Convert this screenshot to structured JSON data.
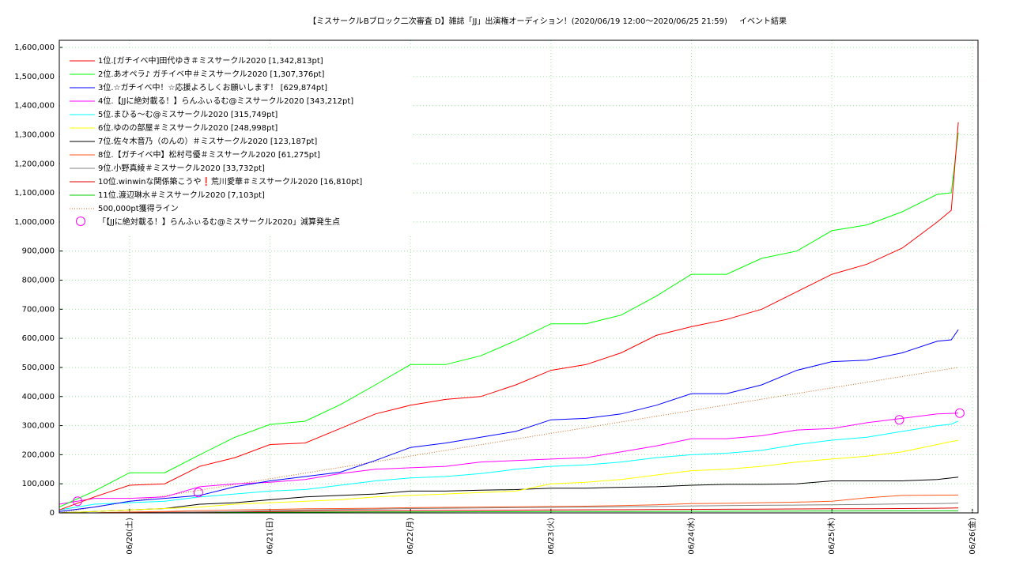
{
  "chart_data": {
    "type": "line",
    "title": "【ミスサークルBブロック二次審査 D】雑誌「JJ」出演権オーディション！(2020/06/19 12:00～2020/06/25 21:59)",
    "subtitle": "イベント結果",
    "x": [
      19.5,
      19.75,
      20,
      20.25,
      20.5,
      20.75,
      21,
      21.25,
      21.5,
      21.75,
      22,
      22.25,
      22.5,
      22.75,
      23,
      23.25,
      23.5,
      23.75,
      24,
      24.25,
      24.5,
      24.75,
      25,
      25.25,
      25.5,
      25.75,
      25.85,
      25.9
    ],
    "xlim": [
      19.5,
      26.04
    ],
    "xticks": [
      {
        "value": 20,
        "label": "06/20(土)"
      },
      {
        "value": 21,
        "label": "06/21(日)"
      },
      {
        "value": 22,
        "label": "06/22(月)"
      },
      {
        "value": 23,
        "label": "06/23(火)"
      },
      {
        "value": 24,
        "label": "06/24(水)"
      },
      {
        "value": 25,
        "label": "06/25(木)"
      },
      {
        "value": 26,
        "label": "06/26(金)"
      }
    ],
    "ylim": [
      0,
      1600000
    ],
    "yticks": [
      0,
      {
        "value": 100000,
        "label": "100,000"
      },
      {
        "value": 200000,
        "label": "200,000"
      },
      {
        "value": 300000,
        "label": "300,000"
      },
      {
        "value": 400000,
        "label": "400,000"
      },
      {
        "value": 500000,
        "label": "500,000"
      },
      {
        "value": 600000,
        "label": "600,000"
      },
      {
        "value": 700000,
        "label": "700,000"
      },
      {
        "value": 800000,
        "label": "800,000"
      },
      {
        "value": 900000,
        "label": "900,000"
      },
      {
        "value": 1000000,
        "label": "1,000,000"
      },
      {
        "value": 1100000,
        "label": "1,100,000"
      },
      {
        "value": 1200000,
        "label": "1,200,000"
      },
      {
        "value": 1300000,
        "label": "1,300,000"
      },
      {
        "value": 1400000,
        "label": "1,400,000"
      },
      {
        "value": 1500000,
        "label": "1,500,000"
      },
      {
        "value": 1600000,
        "label": "1,600,000"
      }
    ],
    "grid": true,
    "series": [
      {
        "name": "1位.[ガチイベ中]田代ゆき＃ミスサークル2020 [1,342,813pt]",
        "color": "#ff0000",
        "values": [
          10000,
          55000,
          95000,
          100000,
          160000,
          190000,
          235000,
          240000,
          290000,
          340000,
          370000,
          390000,
          400000,
          440000,
          490000,
          510000,
          550000,
          610000,
          640000,
          665000,
          700000,
          760000,
          820000,
          855000,
          910000,
          1000000,
          1040000,
          1342813
        ]
      },
      {
        "name": "2位.あオペラ♪ ガチイベ中＃ミスサークル2020 [1,307,376pt]",
        "color": "#00ff00",
        "values": [
          20000,
          75000,
          138000,
          138000,
          200000,
          260000,
          304000,
          315000,
          372000,
          440000,
          510000,
          510000,
          540000,
          592000,
          650000,
          650000,
          680000,
          745000,
          820000,
          820000,
          875000,
          900000,
          970000,
          990000,
          1035000,
          1095000,
          1100000,
          1307376
        ]
      },
      {
        "name": "3位.☆ガチイベ中！☆応援よろしくお願いします！ [629,874pt]",
        "color": "#0000ff",
        "values": [
          5000,
          20000,
          40000,
          50000,
          60000,
          90000,
          110000,
          125000,
          140000,
          180000,
          225000,
          240000,
          260000,
          280000,
          320000,
          325000,
          340000,
          370000,
          410000,
          410000,
          440000,
          490000,
          520000,
          525000,
          550000,
          590000,
          595000,
          629874
        ]
      },
      {
        "name": "4位.【JJに絶対載る！】らんふぃるむ@ミスサークル2020 [343,212pt]",
        "color": "#ff00ff",
        "values": [
          30000,
          50000,
          50000,
          55000,
          90000,
          100000,
          105000,
          115000,
          135000,
          150000,
          155000,
          160000,
          175000,
          180000,
          185000,
          190000,
          210000,
          230000,
          255000,
          255000,
          265000,
          285000,
          290000,
          310000,
          325000,
          340000,
          342000,
          343212
        ]
      },
      {
        "name": "5位.まひる〜む@ミスサークル2020 [315,749pt]",
        "color": "#00ffff",
        "values": [
          10000,
          30000,
          35000,
          40000,
          55000,
          65000,
          75000,
          80000,
          95000,
          110000,
          120000,
          125000,
          135000,
          150000,
          160000,
          165000,
          175000,
          190000,
          200000,
          205000,
          215000,
          235000,
          250000,
          260000,
          280000,
          300000,
          305000,
          315749
        ]
      },
      {
        "name": "6位.ゆのの部屋＃ミスサークル2020 [248,998pt]",
        "color": "#ffff00",
        "values": [
          0,
          5000,
          10000,
          15000,
          20000,
          30000,
          35000,
          40000,
          45000,
          55000,
          60000,
          65000,
          70000,
          75000,
          100000,
          105000,
          115000,
          130000,
          145000,
          150000,
          160000,
          175000,
          185000,
          195000,
          210000,
          235000,
          245000,
          248998
        ]
      },
      {
        "name": "7位.佐々木音乃（のんの）＃ミスサークル2020 [123,187pt]",
        "color": "#000000",
        "values": [
          0,
          5000,
          10000,
          15000,
          30000,
          35000,
          45000,
          55000,
          60000,
          65000,
          75000,
          75000,
          78000,
          80000,
          85000,
          85000,
          88000,
          90000,
          95000,
          98000,
          98000,
          100000,
          110000,
          110000,
          110000,
          115000,
          120000,
          123187
        ]
      },
      {
        "name": "8位.【ガチイベ中】松村弓優＃ミスサークル2020 [61,275pt]",
        "color": "#ff5a1e",
        "values": [
          0,
          0,
          3000,
          5000,
          8000,
          10000,
          12000,
          14000,
          15000,
          16000,
          18000,
          19000,
          20000,
          21000,
          22000,
          23000,
          25000,
          28000,
          32000,
          33000,
          35000,
          37000,
          40000,
          52000,
          60000,
          61000,
          61000,
          61275
        ]
      },
      {
        "name": "9位.小野真綾＃ミスサークル2020 [33,732pt]",
        "color": "#808080",
        "values": [
          0,
          0,
          0,
          1000,
          3000,
          5000,
          8000,
          10000,
          12000,
          13000,
          15000,
          16000,
          17000,
          18000,
          19000,
          20000,
          21000,
          22000,
          24000,
          25000,
          26000,
          27000,
          28000,
          29000,
          31000,
          32000,
          33000,
          33732
        ]
      },
      {
        "name": "10位.winwinな関係築こうや❗荒川愛華＃ミスサークル2020 [16,810pt]",
        "color": "#dd0000",
        "values": [
          0,
          0,
          1000,
          2000,
          3000,
          4000,
          5000,
          6000,
          7000,
          7500,
          8000,
          8500,
          9000,
          9500,
          10000,
          10500,
          11000,
          11500,
          12000,
          12500,
          13000,
          13500,
          14000,
          14500,
          15000,
          16000,
          16500,
          16810
        ]
      },
      {
        "name": "11位.渡辺琳水＃ミスサークル2020 [7,103pt]",
        "color": "#00cc00",
        "values": [
          0,
          0,
          0,
          500,
          1000,
          1500,
          2000,
          2500,
          3000,
          3200,
          3500,
          3800,
          4000,
          4200,
          4500,
          4800,
          5000,
          5200,
          5500,
          5800,
          6000,
          6200,
          6500,
          6700,
          6900,
          7000,
          7050,
          7103
        ]
      }
    ],
    "reference_line": {
      "name": "500,000pt獲得ライン",
      "color": "#d2691e",
      "x": [
        19.5,
        25.9
      ],
      "values": [
        0,
        500000
      ]
    },
    "markers": {
      "name": "「【JJに絶対載る！】らんふぃるむ@ミスサークル2020」減算発生点",
      "color": "#ff00ff",
      "x": [
        19.63,
        20.49,
        25.48,
        25.91
      ],
      "values": [
        40000,
        70000,
        320000,
        343000
      ]
    }
  }
}
